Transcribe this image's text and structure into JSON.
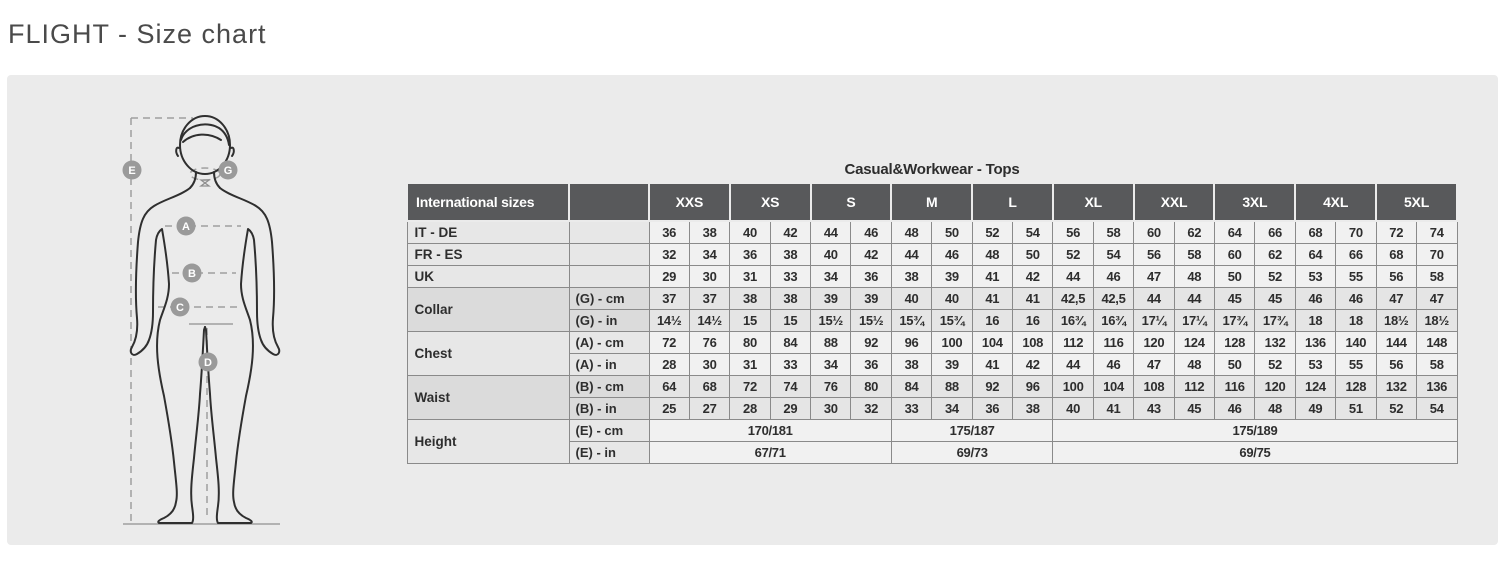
{
  "page": {
    "title": "FLIGHT - Size chart"
  },
  "colors": {
    "header_bg": "#58595b",
    "panel_bg": "#ebebeb",
    "header_text": "#ffffff"
  },
  "diagram": {
    "badges": [
      {
        "letter": "E"
      },
      {
        "letter": "G"
      },
      {
        "letter": "A"
      },
      {
        "letter": "B"
      },
      {
        "letter": "C"
      },
      {
        "letter": "D"
      }
    ]
  },
  "table": {
    "title": "Casual&Workwear - Tops",
    "corner_header": "International sizes",
    "sizes": [
      "XXS",
      "XS",
      "S",
      "M",
      "L",
      "XL",
      "XXL",
      "3XL",
      "4XL",
      "5XL"
    ],
    "groups": [
      {
        "label": "IT - DE",
        "shade": "light",
        "rows": [
          {
            "unit": "",
            "values": [
              "36",
              "38",
              "40",
              "42",
              "44",
              "46",
              "48",
              "50",
              "52",
              "54",
              "56",
              "58",
              "60",
              "62",
              "64",
              "66",
              "68",
              "70",
              "72",
              "74"
            ]
          }
        ]
      },
      {
        "label": "FR - ES",
        "shade": "light",
        "rows": [
          {
            "unit": "",
            "values": [
              "32",
              "34",
              "36",
              "38",
              "40",
              "42",
              "44",
              "46",
              "48",
              "50",
              "52",
              "54",
              "56",
              "58",
              "60",
              "62",
              "64",
              "66",
              "68",
              "70"
            ]
          }
        ]
      },
      {
        "label": "UK",
        "shade": "light",
        "rows": [
          {
            "unit": "",
            "values": [
              "29",
              "30",
              "31",
              "33",
              "34",
              "36",
              "38",
              "39",
              "41",
              "42",
              "44",
              "46",
              "47",
              "48",
              "50",
              "52",
              "53",
              "55",
              "56",
              "58"
            ]
          }
        ]
      },
      {
        "label": "Collar",
        "shade": "dark",
        "rows": [
          {
            "unit": "(G) - cm",
            "values": [
              "37",
              "37",
              "38",
              "38",
              "39",
              "39",
              "40",
              "40",
              "41",
              "41",
              "42,5",
              "42,5",
              "44",
              "44",
              "45",
              "45",
              "46",
              "46",
              "47",
              "47"
            ]
          },
          {
            "unit": "(G) - in",
            "values": [
              "14½",
              "14½",
              "15",
              "15",
              "15½",
              "15½",
              "15¾",
              "15¾",
              "16",
              "16",
              "16¾",
              "16¾",
              "17¼",
              "17¼",
              "17¾",
              "17¾",
              "18",
              "18",
              "18½",
              "18½"
            ]
          }
        ]
      },
      {
        "label": "Chest",
        "shade": "light",
        "rows": [
          {
            "unit": "(A) - cm",
            "values": [
              "72",
              "76",
              "80",
              "84",
              "88",
              "92",
              "96",
              "100",
              "104",
              "108",
              "112",
              "116",
              "120",
              "124",
              "128",
              "132",
              "136",
              "140",
              "144",
              "148"
            ]
          },
          {
            "unit": "(A) - in",
            "values": [
              "28",
              "30",
              "31",
              "33",
              "34",
              "36",
              "38",
              "39",
              "41",
              "42",
              "44",
              "46",
              "47",
              "48",
              "50",
              "52",
              "53",
              "55",
              "56",
              "58"
            ]
          }
        ]
      },
      {
        "label": "Waist",
        "shade": "dark",
        "rows": [
          {
            "unit": "(B) - cm",
            "values": [
              "64",
              "68",
              "72",
              "74",
              "76",
              "80",
              "84",
              "88",
              "92",
              "96",
              "100",
              "104",
              "108",
              "112",
              "116",
              "120",
              "124",
              "128",
              "132",
              "136"
            ]
          },
          {
            "unit": "(B) - in",
            "values": [
              "25",
              "27",
              "28",
              "29",
              "30",
              "32",
              "33",
              "34",
              "36",
              "38",
              "40",
              "41",
              "43",
              "45",
              "46",
              "48",
              "49",
              "51",
              "52",
              "54"
            ]
          }
        ]
      },
      {
        "label": "Height",
        "shade": "light",
        "rows": [
          {
            "unit": "(E) - cm",
            "spans": [
              {
                "text": "170/181",
                "cols": 6
              },
              {
                "text": "175/187",
                "cols": 4
              },
              {
                "text": "175/189",
                "cols": 10
              }
            ]
          },
          {
            "unit": "(E) - in",
            "spans": [
              {
                "text": "67/71",
                "cols": 6
              },
              {
                "text": "69/73",
                "cols": 4
              },
              {
                "text": "69/75",
                "cols": 10
              }
            ]
          }
        ]
      }
    ]
  }
}
